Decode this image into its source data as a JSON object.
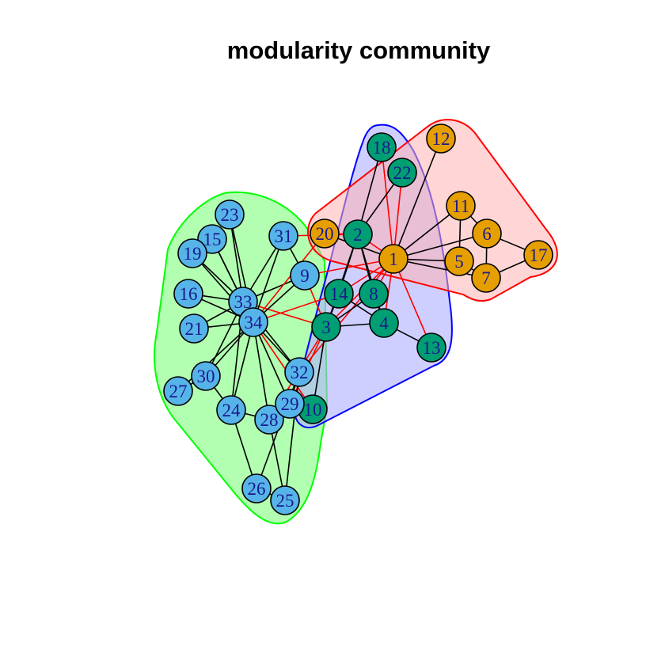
{
  "title": "modularity community",
  "communities": [
    {
      "name": "green",
      "fill": "#b2ffb2",
      "stroke": "#00ff00",
      "members": [
        "15",
        "16",
        "19",
        "21",
        "23",
        "24",
        "25",
        "26",
        "27",
        "28",
        "29",
        "30",
        "31",
        "32",
        "33",
        "34",
        "9"
      ]
    },
    {
      "name": "blue",
      "fill": "#b2b2ff",
      "stroke": "#0000ff",
      "members": [
        "2",
        "3",
        "4",
        "8",
        "10",
        "13",
        "14",
        "18",
        "22"
      ]
    },
    {
      "name": "red",
      "fill": "#ffb2b2",
      "stroke": "#ff0000",
      "members": [
        "1",
        "5",
        "6",
        "7",
        "11",
        "12",
        "17",
        "20"
      ]
    }
  ],
  "node_colors": {
    "orange": "#e69f00",
    "green": "#009e73",
    "blue": "#56b4e9"
  },
  "nodes": [
    {
      "id": "1",
      "label": "1",
      "group": "orange"
    },
    {
      "id": "2",
      "label": "2",
      "group": "green"
    },
    {
      "id": "3",
      "label": "3",
      "group": "green"
    },
    {
      "id": "4",
      "label": "4",
      "group": "green"
    },
    {
      "id": "5",
      "label": "5",
      "group": "orange"
    },
    {
      "id": "6",
      "label": "6",
      "group": "orange"
    },
    {
      "id": "7",
      "label": "7",
      "group": "orange"
    },
    {
      "id": "8",
      "label": "8",
      "group": "green"
    },
    {
      "id": "9",
      "label": "9",
      "group": "blue"
    },
    {
      "id": "10",
      "label": "10",
      "group": "green"
    },
    {
      "id": "11",
      "label": "11",
      "group": "orange"
    },
    {
      "id": "12",
      "label": "12",
      "group": "orange"
    },
    {
      "id": "13",
      "label": "13",
      "group": "green"
    },
    {
      "id": "14",
      "label": "14",
      "group": "green"
    },
    {
      "id": "15",
      "label": "15",
      "group": "blue"
    },
    {
      "id": "16",
      "label": "16",
      "group": "blue"
    },
    {
      "id": "17",
      "label": "17",
      "group": "orange"
    },
    {
      "id": "18",
      "label": "18",
      "group": "green"
    },
    {
      "id": "19",
      "label": "19",
      "group": "blue"
    },
    {
      "id": "20",
      "label": "20",
      "group": "orange"
    },
    {
      "id": "21",
      "label": "21",
      "group": "blue"
    },
    {
      "id": "22",
      "label": "22",
      "group": "green"
    },
    {
      "id": "23",
      "label": "23",
      "group": "blue"
    },
    {
      "id": "24",
      "label": "24",
      "group": "blue"
    },
    {
      "id": "25",
      "label": "25",
      "group": "blue"
    },
    {
      "id": "26",
      "label": "26",
      "group": "blue"
    },
    {
      "id": "27",
      "label": "27",
      "group": "blue"
    },
    {
      "id": "28",
      "label": "28",
      "group": "blue"
    },
    {
      "id": "29",
      "label": "29",
      "group": "blue"
    },
    {
      "id": "30",
      "label": "30",
      "group": "blue"
    },
    {
      "id": "31",
      "label": "31",
      "group": "blue"
    },
    {
      "id": "32",
      "label": "32",
      "group": "blue"
    },
    {
      "id": "33",
      "label": "33",
      "group": "blue"
    },
    {
      "id": "34",
      "label": "34",
      "group": "blue"
    }
  ],
  "edges": [
    {
      "from": "1",
      "to": "2",
      "cross": true
    },
    {
      "from": "1",
      "to": "3",
      "cross": true
    },
    {
      "from": "1",
      "to": "4",
      "cross": true
    },
    {
      "from": "1",
      "to": "5",
      "cross": false
    },
    {
      "from": "1",
      "to": "6",
      "cross": false
    },
    {
      "from": "1",
      "to": "7",
      "cross": false
    },
    {
      "from": "1",
      "to": "8",
      "cross": true
    },
    {
      "from": "1",
      "to": "9",
      "cross": true
    },
    {
      "from": "1",
      "to": "11",
      "cross": false
    },
    {
      "from": "1",
      "to": "12",
      "cross": false
    },
    {
      "from": "1",
      "to": "13",
      "cross": true
    },
    {
      "from": "1",
      "to": "14",
      "cross": true
    },
    {
      "from": "1",
      "to": "18",
      "cross": true
    },
    {
      "from": "1",
      "to": "20",
      "cross": false
    },
    {
      "from": "1",
      "to": "22",
      "cross": true
    },
    {
      "from": "1",
      "to": "32",
      "cross": true
    },
    {
      "from": "2",
      "to": "3",
      "cross": false
    },
    {
      "from": "2",
      "to": "4",
      "cross": false
    },
    {
      "from": "2",
      "to": "8",
      "cross": false
    },
    {
      "from": "2",
      "to": "14",
      "cross": false
    },
    {
      "from": "2",
      "to": "18",
      "cross": false
    },
    {
      "from": "2",
      "to": "20",
      "cross": true
    },
    {
      "from": "2",
      "to": "22",
      "cross": false
    },
    {
      "from": "2",
      "to": "31",
      "cross": true
    },
    {
      "from": "3",
      "to": "4",
      "cross": false
    },
    {
      "from": "3",
      "to": "8",
      "cross": false
    },
    {
      "from": "3",
      "to": "9",
      "cross": true
    },
    {
      "from": "3",
      "to": "10",
      "cross": false
    },
    {
      "from": "3",
      "to": "14",
      "cross": false
    },
    {
      "from": "3",
      "to": "28",
      "cross": true
    },
    {
      "from": "3",
      "to": "29",
      "cross": true
    },
    {
      "from": "3",
      "to": "33",
      "cross": true
    },
    {
      "from": "4",
      "to": "8",
      "cross": false
    },
    {
      "from": "4",
      "to": "13",
      "cross": false
    },
    {
      "from": "4",
      "to": "14",
      "cross": false
    },
    {
      "from": "5",
      "to": "7",
      "cross": false
    },
    {
      "from": "5",
      "to": "11",
      "cross": false
    },
    {
      "from": "6",
      "to": "7",
      "cross": false
    },
    {
      "from": "6",
      "to": "11",
      "cross": false
    },
    {
      "from": "6",
      "to": "17",
      "cross": false
    },
    {
      "from": "7",
      "to": "17",
      "cross": false
    },
    {
      "from": "9",
      "to": "31",
      "cross": false
    },
    {
      "from": "9",
      "to": "33",
      "cross": false
    },
    {
      "from": "9",
      "to": "34",
      "cross": false
    },
    {
      "from": "10",
      "to": "34",
      "cross": true
    },
    {
      "from": "14",
      "to": "34",
      "cross": true
    },
    {
      "from": "15",
      "to": "33",
      "cross": false
    },
    {
      "from": "15",
      "to": "34",
      "cross": false
    },
    {
      "from": "16",
      "to": "33",
      "cross": false
    },
    {
      "from": "16",
      "to": "34",
      "cross": false
    },
    {
      "from": "19",
      "to": "33",
      "cross": false
    },
    {
      "from": "19",
      "to": "34",
      "cross": false
    },
    {
      "from": "20",
      "to": "34",
      "cross": true
    },
    {
      "from": "21",
      "to": "33",
      "cross": false
    },
    {
      "from": "21",
      "to": "34",
      "cross": false
    },
    {
      "from": "23",
      "to": "33",
      "cross": false
    },
    {
      "from": "23",
      "to": "34",
      "cross": false
    },
    {
      "from": "24",
      "to": "26",
      "cross": false
    },
    {
      "from": "24",
      "to": "28",
      "cross": false
    },
    {
      "from": "24",
      "to": "30",
      "cross": false
    },
    {
      "from": "24",
      "to": "33",
      "cross": false
    },
    {
      "from": "24",
      "to": "34",
      "cross": false
    },
    {
      "from": "25",
      "to": "26",
      "cross": false
    },
    {
      "from": "25",
      "to": "28",
      "cross": false
    },
    {
      "from": "25",
      "to": "32",
      "cross": false
    },
    {
      "from": "26",
      "to": "32",
      "cross": false
    },
    {
      "from": "27",
      "to": "30",
      "cross": false
    },
    {
      "from": "27",
      "to": "34",
      "cross": false
    },
    {
      "from": "28",
      "to": "34",
      "cross": false
    },
    {
      "from": "29",
      "to": "32",
      "cross": false
    },
    {
      "from": "29",
      "to": "34",
      "cross": false
    },
    {
      "from": "30",
      "to": "33",
      "cross": false
    },
    {
      "from": "30",
      "to": "34",
      "cross": false
    },
    {
      "from": "31",
      "to": "33",
      "cross": false
    },
    {
      "from": "31",
      "to": "34",
      "cross": false
    },
    {
      "from": "32",
      "to": "33",
      "cross": false
    },
    {
      "from": "32",
      "to": "34",
      "cross": false
    },
    {
      "from": "33",
      "to": "34",
      "cross": false
    }
  ],
  "edge_colors": {
    "within": "#000000",
    "between": "#ff0000"
  }
}
